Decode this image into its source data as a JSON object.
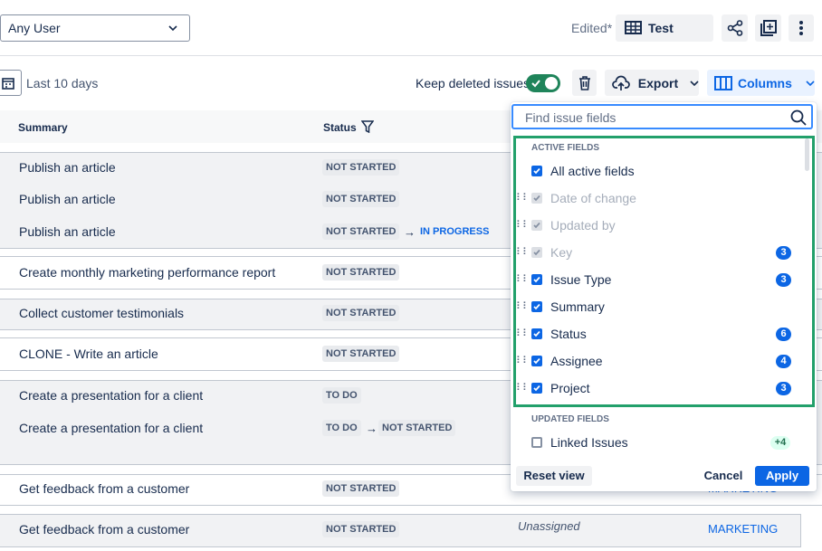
{
  "toolbar": {
    "user_filter": "Any User",
    "edited": "Edited*",
    "view_name": "Test",
    "date_range": "Last 10 days",
    "keep_deleted": "Keep deleted issues",
    "export": "Export",
    "columns": "Columns"
  },
  "table": {
    "headers": [
      "Summary",
      "Status"
    ],
    "groups": [
      [
        {
          "summary": "Publish an article",
          "status": "NOT STARTED"
        },
        {
          "summary": "Publish an article",
          "status": "NOT STARTED"
        },
        {
          "summary": "Publish an article",
          "status": "NOT STARTED",
          "next_status": "IN PROGRESS"
        }
      ],
      [
        {
          "summary": "Create monthly marketing performance report",
          "status": "NOT STARTED"
        }
      ],
      [
        {
          "summary": "Collect customer testimonials",
          "status": "NOT STARTED"
        }
      ],
      [
        {
          "summary": "CLONE - Write an article",
          "status": "NOT STARTED"
        }
      ],
      [
        {
          "summary": "Create a presentation for a client",
          "status": "TO DO"
        },
        {
          "summary": "Create a presentation for a client",
          "status": "TO DO",
          "next_status": "NOT STARTED"
        }
      ],
      [
        {
          "summary": "Get feedback from a customer",
          "status": "NOT STARTED",
          "project": "MARKETING"
        }
      ],
      [
        {
          "summary": "Get feedback from a customer",
          "status": "NOT STARTED",
          "assignee": "Unassigned",
          "project": "MARKETING"
        }
      ]
    ]
  },
  "popup": {
    "search_placeholder": "Find issue fields",
    "active_title": "ACTIVE FIELDS",
    "all_active": "All active fields",
    "active_fields": [
      {
        "label": "Date of change",
        "checked": true,
        "disabled": true
      },
      {
        "label": "Updated by",
        "checked": true,
        "disabled": true
      },
      {
        "label": "Key",
        "checked": true,
        "disabled": true,
        "badge": 3
      },
      {
        "label": "Issue Type",
        "checked": true,
        "badge": 3
      },
      {
        "label": "Summary",
        "checked": true
      },
      {
        "label": "Status",
        "checked": true,
        "badge": 6
      },
      {
        "label": "Assignee",
        "checked": true,
        "badge": 4
      },
      {
        "label": "Project",
        "checked": true,
        "badge": 3
      }
    ],
    "updated_title": "UPDATED FIELDS",
    "updated_fields": [
      {
        "label": "Linked Issues",
        "checked": false,
        "badge": "+4"
      }
    ],
    "reset": "Reset view",
    "cancel": "Cancel",
    "apply": "Apply"
  }
}
